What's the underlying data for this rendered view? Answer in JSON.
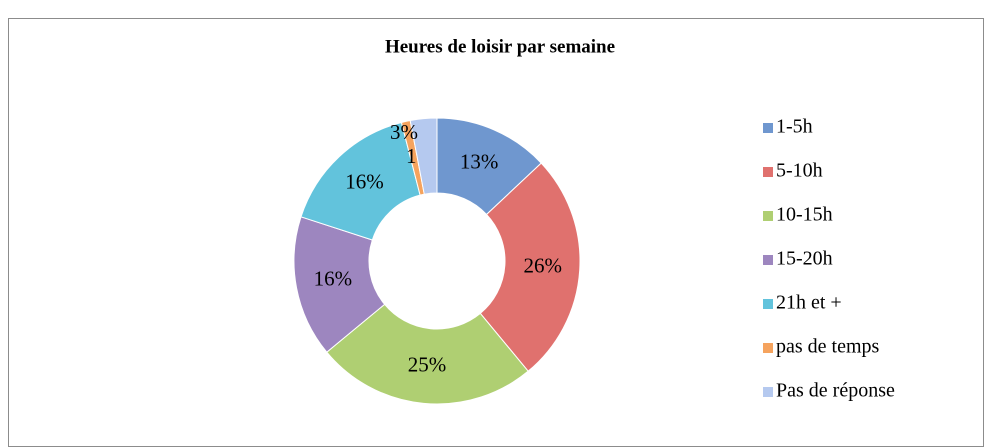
{
  "chart_data": {
    "type": "doughnut",
    "title": "Heures de loisir par semaine",
    "categories": [
      "1-5h",
      "5-10h",
      "10-15h",
      "15-20h",
      "21h et +",
      "pas de temps",
      "Pas de réponse"
    ],
    "values": [
      13,
      26,
      25,
      16,
      16,
      1,
      3
    ],
    "value_labels": [
      "13%",
      "26%",
      "25%",
      "16%",
      "16%",
      "1%",
      "3%"
    ],
    "colors": [
      "#6f97cf",
      "#e0716e",
      "#afcf72",
      "#9d86bf",
      "#62c3dc",
      "#f5a35e",
      "#b5c9ef"
    ],
    "legend": "right"
  }
}
